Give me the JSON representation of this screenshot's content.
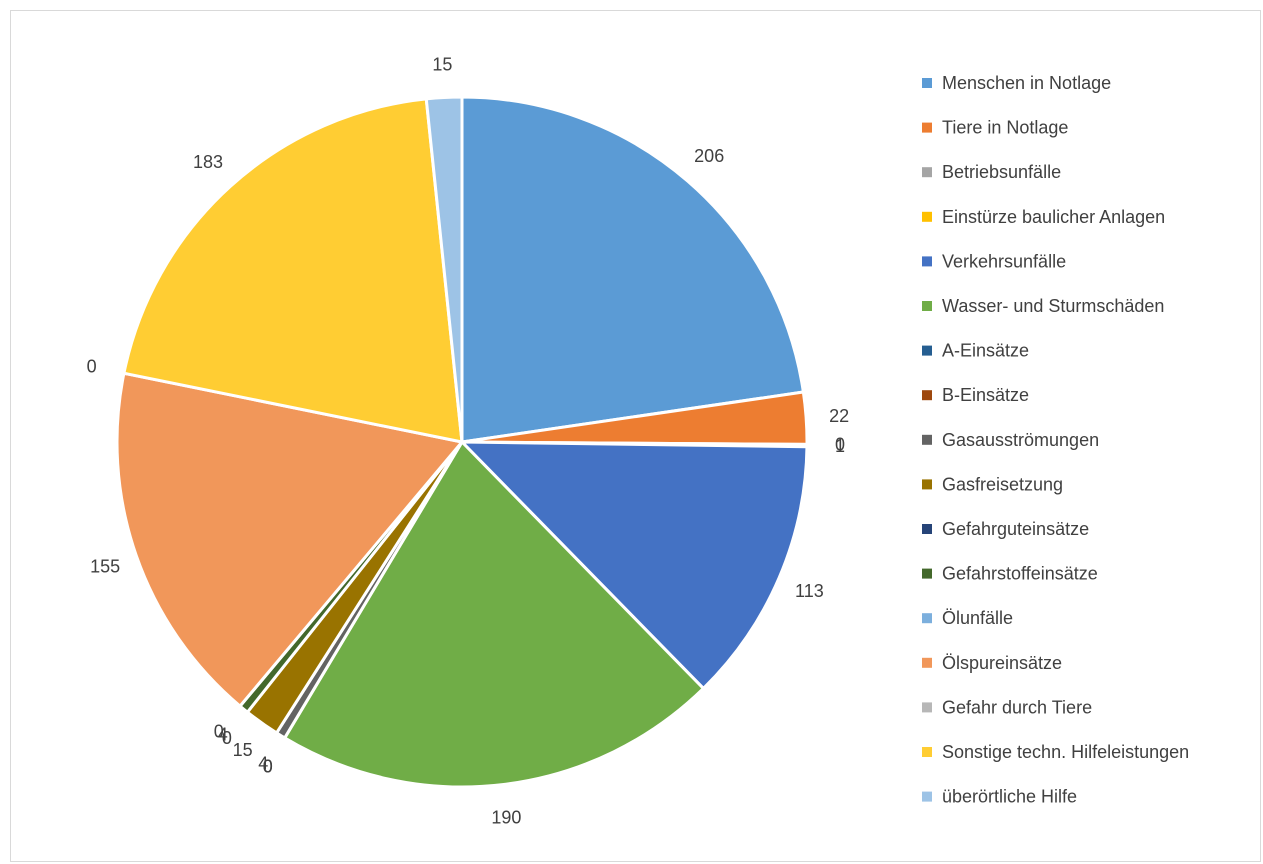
{
  "chart_data": {
    "type": "pie",
    "title": "",
    "legend_position": "right",
    "slices": [
      {
        "label": "Menschen in Notlage",
        "value": 206,
        "color": "#5B9BD5"
      },
      {
        "label": "Tiere in Notlage",
        "value": 22,
        "color": "#ED7D31"
      },
      {
        "label": "Betriebsunfälle",
        "value": 0,
        "color": "#A5A5A5"
      },
      {
        "label": "Einstürze baulicher Anlagen",
        "value": 1,
        "color": "#FFC000"
      },
      {
        "label": "Verkehrsunfälle",
        "value": 113,
        "color": "#4472C4"
      },
      {
        "label": "Wasser- und Sturmschäden",
        "value": 190,
        "color": "#70AD47"
      },
      {
        "label": "A-Einsätze",
        "value": 0,
        "color": "#255E91"
      },
      {
        "label": "B-Einsätze",
        "value": 0,
        "color": "#9E480E"
      },
      {
        "label": "Gasausströmungen",
        "value": 4,
        "color": "#636363"
      },
      {
        "label": "Gasfreisetzung",
        "value": 15,
        "color": "#997300"
      },
      {
        "label": "Gefahrguteinsätze",
        "value": 0,
        "color": "#264478"
      },
      {
        "label": "Gefahrstoffeinsätze",
        "value": 4,
        "color": "#43682B"
      },
      {
        "label": "Ölunfälle",
        "value": 0,
        "color": "#7CAFDD"
      },
      {
        "label": "Ölspureinsätze",
        "value": 155,
        "color": "#F1975A"
      },
      {
        "label": "Gefahr durch Tiere",
        "value": 0,
        "color": "#B7B7B7"
      },
      {
        "label": "Sonstige techn. Hilfeleistungen",
        "value": 183,
        "color": "#FFCD33"
      },
      {
        "label": "überörtliche Hilfe",
        "value": 15,
        "color": "#9DC3E6"
      }
    ]
  }
}
